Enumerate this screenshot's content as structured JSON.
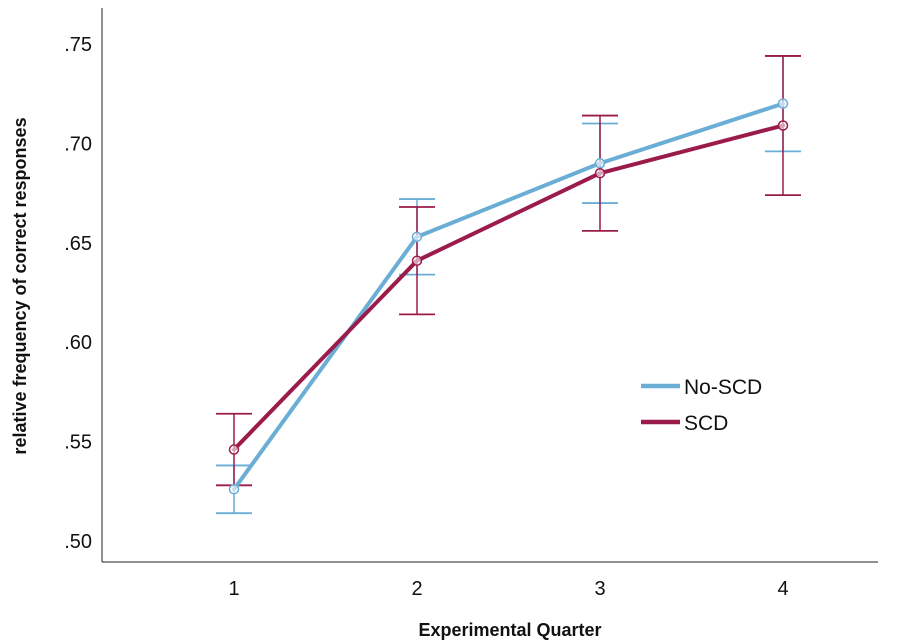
{
  "chart_data": {
    "type": "line",
    "title": "",
    "xlabel": "Experimental Quarter",
    "ylabel": "relative frequency of correct responses",
    "categories": [
      "1",
      "2",
      "3",
      "4"
    ],
    "ylim": [
      0.5,
      0.75
    ],
    "yticks": [
      {
        "value": 0.5,
        "label": ".50"
      },
      {
        "value": 0.55,
        "label": ".55"
      },
      {
        "value": 0.6,
        "label": ".60"
      },
      {
        "value": 0.65,
        "label": ".65"
      },
      {
        "value": 0.7,
        "label": ".70"
      },
      {
        "value": 0.75,
        "label": ".75"
      }
    ],
    "grid": false,
    "legend_position": "right",
    "series": [
      {
        "name": "No-SCD",
        "color": "#6aaed6",
        "values": [
          0.526,
          0.653,
          0.69,
          0.72
        ],
        "error_low": [
          0.514,
          0.634,
          0.67,
          0.696
        ],
        "error_high": [
          0.538,
          0.672,
          0.71,
          0.744
        ]
      },
      {
        "name": "SCD",
        "color": "#9b1b4a",
        "values": [
          0.546,
          0.641,
          0.685,
          0.709
        ],
        "error_low": [
          0.528,
          0.614,
          0.656,
          0.674
        ],
        "error_high": [
          0.564,
          0.668,
          0.714,
          0.744
        ]
      }
    ]
  }
}
